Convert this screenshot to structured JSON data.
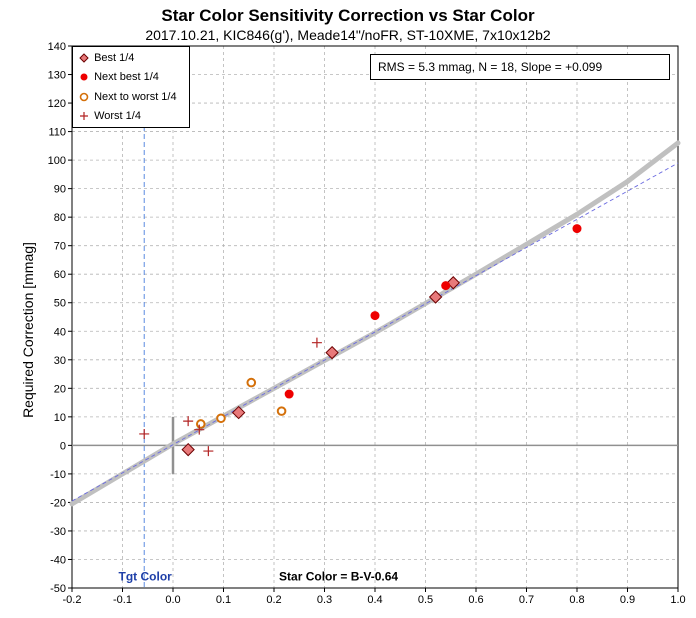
{
  "chart_data": {
    "type": "scatter",
    "title": "Star Color Sensitivity Correction vs Star Color",
    "subtitle": "2017.10.21, KIC846(g'), Meade14\"/noFR, ST-10XME, 7x10x12b2",
    "xlabel": "Star Color = B-V-0.64",
    "ylabel": "Required Correction [mmag]",
    "xlim": [
      -0.2,
      1.0
    ],
    "ylim": [
      -50,
      140
    ],
    "xticks": [
      "-0.2",
      "-0.1",
      "0.0",
      "0.1",
      "0.2",
      "0.3",
      "0.4",
      "0.5",
      "0.6",
      "0.7",
      "0.8",
      "0.9",
      "1.0"
    ],
    "yticks": [
      "140",
      "130",
      "120",
      "110",
      "100",
      "90",
      "80",
      "70",
      "60",
      "50",
      "40",
      "30",
      "20",
      "10",
      "0",
      "-10",
      "-20",
      "-30",
      "-40",
      "-50"
    ],
    "grid": true,
    "legend_position": "top-left",
    "annotation": "RMS = 5.3 mmag, N = 18, Slope = +0.099",
    "target_label": "Tgt Color",
    "target_color_x": -0.057,
    "series": [
      {
        "name": "Best 1/4",
        "marker": "diamond",
        "color": "#e8797a",
        "edge": "#6b0000",
        "points": [
          [
            0.03,
            -1.5
          ],
          [
            0.13,
            11.5
          ],
          [
            0.315,
            32.5
          ],
          [
            0.52,
            52
          ],
          [
            0.555,
            57
          ]
        ]
      },
      {
        "name": "Next best 1/4",
        "marker": "dot",
        "color": "#ee0000",
        "edge": "#ee0000",
        "points": [
          [
            0.23,
            18
          ],
          [
            0.4,
            45.5
          ],
          [
            0.54,
            56
          ],
          [
            0.8,
            76
          ]
        ]
      },
      {
        "name": "Next to worst 1/4",
        "marker": "ring",
        "color": "#d4700a",
        "edge": "#d4700a",
        "points": [
          [
            0.055,
            7.5
          ],
          [
            0.095,
            9.5
          ],
          [
            0.155,
            22
          ],
          [
            0.215,
            12
          ]
        ]
      },
      {
        "name": "Worst 1/4",
        "marker": "plus",
        "color": "#b22222",
        "edge": "#b22222",
        "points": [
          [
            -0.057,
            4
          ],
          [
            0.03,
            8.5
          ],
          [
            0.052,
            5.5
          ],
          [
            0.07,
            -2
          ],
          [
            0.285,
            36
          ]
        ]
      }
    ],
    "fit_curve": [
      [
        -0.2,
        -20.5
      ],
      [
        0.0,
        0.5
      ],
      [
        0.2,
        20
      ],
      [
        0.4,
        39.5
      ],
      [
        0.6,
        60
      ],
      [
        0.8,
        81
      ],
      [
        0.9,
        92.5
      ],
      [
        1.0,
        106
      ]
    ],
    "fit_line_dashed": [
      [
        -0.2,
        -19.5
      ],
      [
        1.0,
        99
      ]
    ],
    "colors": {
      "fit_curve": "#c0c0c0",
      "fit_line": "#6a6ae0",
      "target_line": "#5a8ae0",
      "target_text": "#1e3fa8",
      "zero_axis": "#909090"
    }
  }
}
